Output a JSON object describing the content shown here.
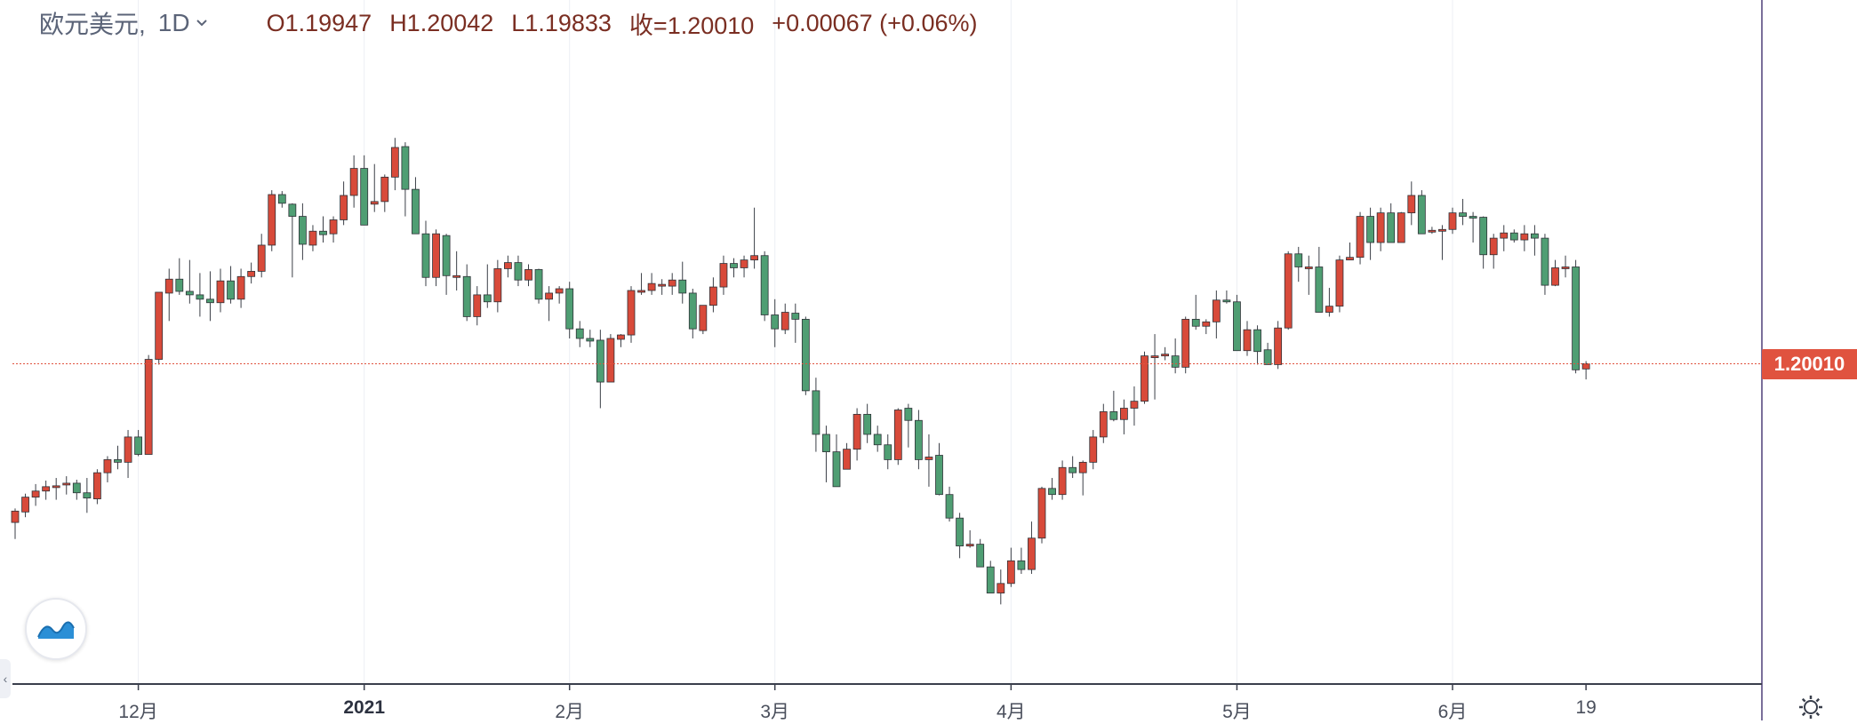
{
  "header": {
    "symbol": "欧元美元,",
    "timeframe": "1D",
    "open": "O1.19947",
    "high": "H1.20042",
    "low": "L1.19833",
    "close": "收=1.20010",
    "change": "+0.00067 (+0.06%)"
  },
  "price_badge": "1.20010",
  "colors": {
    "up": "#d84a3a",
    "down": "#4f9e73",
    "price_line": "#e0533f",
    "axis": "#3a3f4c",
    "grid": "#eceff4"
  },
  "icons": {
    "logo": "wave-logo-icon",
    "settings": "gear-icon",
    "scroll_left": "chevron-left-icon",
    "dropdown": "chevron-down-icon"
  },
  "chart_data": {
    "type": "candlestick",
    "symbol": "欧元美元",
    "interval": "1D",
    "last_price": 1.2001,
    "x_ticks": [
      {
        "label": "12月",
        "index": 12,
        "bold": false
      },
      {
        "label": "2021",
        "index": 34,
        "bold": true
      },
      {
        "label": "2月",
        "index": 54,
        "bold": false
      },
      {
        "label": "3月",
        "index": 74,
        "bold": false
      },
      {
        "label": "4月",
        "index": 97,
        "bold": false
      },
      {
        "label": "5月",
        "index": 119,
        "bold": false
      },
      {
        "label": "6月",
        "index": 140,
        "bold": false
      },
      {
        "label": "19",
        "index": 153,
        "bold": false
      }
    ],
    "ylim": [
      1.1705,
      1.2357
    ],
    "grid": true,
    "candles": [
      [
        1.1819,
        1.1835,
        1.18,
        1.1832
      ],
      [
        1.1831,
        1.1852,
        1.1825,
        1.1848
      ],
      [
        1.1848,
        1.1863,
        1.1838,
        1.1855
      ],
      [
        1.1855,
        1.1867,
        1.1845,
        1.186
      ],
      [
        1.1861,
        1.187,
        1.1845,
        1.1861
      ],
      [
        1.1862,
        1.1872,
        1.1851,
        1.1864
      ],
      [
        1.1864,
        1.1868,
        1.1845,
        1.1853
      ],
      [
        1.1853,
        1.187,
        1.183,
        1.1847
      ],
      [
        1.1846,
        1.188,
        1.184,
        1.1876
      ],
      [
        1.1876,
        1.1895,
        1.1865,
        1.1891
      ],
      [
        1.1891,
        1.1907,
        1.188,
        1.1888
      ],
      [
        1.1888,
        1.1925,
        1.187,
        1.1917
      ],
      [
        1.1917,
        1.1925,
        1.1895,
        1.1897
      ],
      [
        1.1897,
        1.2011,
        1.1897,
        1.2006
      ],
      [
        1.2006,
        1.208,
        1.2,
        1.2083
      ],
      [
        1.2082,
        1.211,
        1.205,
        1.2098
      ],
      [
        1.2098,
        1.2122,
        1.208,
        1.2084
      ],
      [
        1.2084,
        1.212,
        1.207,
        1.208
      ],
      [
        1.208,
        1.2105,
        1.2055,
        1.2075
      ],
      [
        1.2075,
        1.2107,
        1.205,
        1.2071
      ],
      [
        1.2071,
        1.211,
        1.206,
        1.2096
      ],
      [
        1.2096,
        1.2113,
        1.207,
        1.2075
      ],
      [
        1.2075,
        1.211,
        1.2065,
        1.2101
      ],
      [
        1.2101,
        1.2117,
        1.2093,
        1.2107
      ],
      [
        1.2107,
        1.215,
        1.21,
        1.2137
      ],
      [
        1.2137,
        1.22,
        1.213,
        1.2195
      ],
      [
        1.2195,
        1.2199,
        1.218,
        1.2185
      ],
      [
        1.2184,
        1.2185,
        1.21,
        1.217
      ],
      [
        1.217,
        1.2185,
        1.212,
        1.2138
      ],
      [
        1.2137,
        1.216,
        1.213,
        1.2153
      ],
      [
        1.2153,
        1.217,
        1.214,
        1.2149
      ],
      [
        1.215,
        1.217,
        1.214,
        1.2166
      ],
      [
        1.2166,
        1.221,
        1.216,
        1.2194
      ],
      [
        1.2194,
        1.224,
        1.218,
        1.2225
      ],
      [
        1.2225,
        1.224,
        1.216,
        1.216
      ],
      [
        1.2184,
        1.223,
        1.2175,
        1.2187
      ],
      [
        1.2187,
        1.2218,
        1.2175,
        1.2215
      ],
      [
        1.2215,
        1.226,
        1.22,
        1.2249
      ],
      [
        1.225,
        1.2255,
        1.217,
        1.2201
      ],
      [
        1.2201,
        1.2215,
        1.215,
        1.215
      ],
      [
        1.215,
        1.2165,
        1.209,
        1.21
      ],
      [
        1.21,
        1.2155,
        1.209,
        1.215
      ],
      [
        1.2148,
        1.215,
        1.208,
        1.2102
      ],
      [
        1.2102,
        1.213,
        1.2085,
        1.2102
      ],
      [
        1.2101,
        1.2115,
        1.205,
        1.2055
      ],
      [
        1.2055,
        1.209,
        1.2045,
        1.208
      ],
      [
        1.208,
        1.2115,
        1.2065,
        1.2072
      ],
      [
        1.2072,
        1.212,
        1.206,
        1.211
      ],
      [
        1.211,
        1.2125,
        1.21,
        1.2117
      ],
      [
        1.2117,
        1.2125,
        1.209,
        1.2097
      ],
      [
        1.2097,
        1.2115,
        1.209,
        1.2109
      ],
      [
        1.2109,
        1.211,
        1.207,
        1.2075
      ],
      [
        1.2075,
        1.209,
        1.205,
        1.2082
      ],
      [
        1.2082,
        1.209,
        1.207,
        1.2087
      ],
      [
        1.2087,
        1.2095,
        1.203,
        1.2041
      ],
      [
        1.2041,
        1.205,
        1.202,
        1.203
      ],
      [
        1.203,
        1.204,
        1.202,
        1.2027
      ],
      [
        1.2028,
        1.204,
        1.195,
        1.198
      ],
      [
        1.198,
        1.2035,
        1.198,
        1.203
      ],
      [
        1.2029,
        1.2035,
        1.202,
        1.2034
      ],
      [
        1.2034,
        1.209,
        1.2025,
        1.2085
      ],
      [
        1.2085,
        1.2105,
        1.208,
        1.2085
      ],
      [
        1.2085,
        1.2105,
        1.208,
        1.2093
      ],
      [
        1.2092,
        1.2098,
        1.208,
        1.2092
      ],
      [
        1.209,
        1.2105,
        1.208,
        1.2097
      ],
      [
        1.2097,
        1.2118,
        1.207,
        1.2082
      ],
      [
        1.2082,
        1.2087,
        1.203,
        1.2041
      ],
      [
        1.2039,
        1.2068,
        1.2035,
        1.2068
      ],
      [
        1.2068,
        1.21,
        1.206,
        1.2089
      ],
      [
        1.2089,
        1.2125,
        1.208,
        1.2116
      ],
      [
        1.2116,
        1.2122,
        1.21,
        1.2111
      ],
      [
        1.2111,
        1.2125,
        1.21,
        1.212
      ],
      [
        1.212,
        1.218,
        1.211,
        1.2125
      ],
      [
        1.2125,
        1.213,
        1.205,
        1.2057
      ],
      [
        1.2057,
        1.2075,
        1.202,
        1.2041
      ],
      [
        1.204,
        1.207,
        1.2035,
        1.206
      ],
      [
        1.2059,
        1.207,
        1.2025,
        1.2052
      ],
      [
        1.2052,
        1.2055,
        1.1965,
        1.197
      ],
      [
        1.197,
        1.1985,
        1.19,
        1.192
      ],
      [
        1.192,
        1.193,
        1.1865,
        1.19
      ],
      [
        1.19,
        1.192,
        1.1862,
        1.186
      ],
      [
        1.188,
        1.191,
        1.188,
        1.1903
      ],
      [
        1.1903,
        1.195,
        1.189,
        1.1943
      ],
      [
        1.1943,
        1.1955,
        1.191,
        1.192
      ],
      [
        1.192,
        1.193,
        1.19,
        1.1908
      ],
      [
        1.1908,
        1.192,
        1.188,
        1.1891
      ],
      [
        1.1891,
        1.195,
        1.1885,
        1.1948
      ],
      [
        1.195,
        1.1955,
        1.1905,
        1.1936
      ],
      [
        1.1936,
        1.1948,
        1.188,
        1.1891
      ],
      [
        1.1891,
        1.192,
        1.186,
        1.1894
      ],
      [
        1.1896,
        1.191,
        1.185,
        1.1851
      ],
      [
        1.1851,
        1.186,
        1.182,
        1.1824
      ],
      [
        1.1824,
        1.183,
        1.1778,
        1.1792
      ],
      [
        1.1792,
        1.181,
        1.179,
        1.1794
      ],
      [
        1.1794,
        1.18,
        1.1773,
        1.1768
      ],
      [
        1.1768,
        1.1775,
        1.174,
        1.1738
      ],
      [
        1.1738,
        1.1765,
        1.1725,
        1.1749
      ],
      [
        1.1749,
        1.179,
        1.1745,
        1.1775
      ],
      [
        1.1775,
        1.179,
        1.176,
        1.1765
      ],
      [
        1.1765,
        1.182,
        1.176,
        1.1801
      ],
      [
        1.1801,
        1.186,
        1.1795,
        1.1858
      ],
      [
        1.1858,
        1.187,
        1.1845,
        1.1851
      ],
      [
        1.1851,
        1.189,
        1.1845,
        1.1882
      ],
      [
        1.1882,
        1.1895,
        1.187,
        1.1876
      ],
      [
        1.1876,
        1.189,
        1.185,
        1.1888
      ],
      [
        1.1888,
        1.1925,
        1.188,
        1.1917
      ],
      [
        1.1917,
        1.1955,
        1.191,
        1.1946
      ],
      [
        1.1946,
        1.197,
        1.1935,
        1.1937
      ],
      [
        1.1937,
        1.196,
        1.192,
        1.195
      ],
      [
        1.195,
        1.1975,
        1.193,
        1.1958
      ],
      [
        1.1958,
        1.2015,
        1.1955,
        1.201
      ],
      [
        1.201,
        1.2035,
        1.196,
        1.201
      ],
      [
        1.201,
        1.202,
        1.2005,
        1.2012
      ],
      [
        1.201,
        1.203,
        1.199,
        1.1997
      ],
      [
        1.1997,
        1.2055,
        1.199,
        1.2052
      ],
      [
        1.2052,
        1.208,
        1.204,
        1.2044
      ],
      [
        1.2044,
        1.2052,
        1.2035,
        1.2049
      ],
      [
        1.2049,
        1.2085,
        1.203,
        1.2074
      ],
      [
        1.2074,
        1.2085,
        1.207,
        1.2072
      ],
      [
        1.2072,
        1.208,
        1.202,
        1.2016
      ],
      [
        1.2016,
        1.205,
        1.201,
        1.204
      ],
      [
        1.204,
        1.2045,
        1.2,
        1.2015
      ],
      [
        1.2017,
        1.2025,
        1.2,
        1.2
      ],
      [
        1.2,
        1.205,
        1.1995,
        1.2042
      ],
      [
        1.2042,
        1.213,
        1.204,
        1.2127
      ],
      [
        1.2127,
        1.2135,
        1.2095,
        1.2112
      ],
      [
        1.2112,
        1.2125,
        1.208,
        1.2112
      ],
      [
        1.2112,
        1.2135,
        1.206,
        1.206
      ],
      [
        1.206,
        1.2088,
        1.2055,
        1.2067
      ],
      [
        1.2067,
        1.2125,
        1.206,
        1.212
      ],
      [
        1.212,
        1.214,
        1.212,
        1.2123
      ],
      [
        1.2123,
        1.2175,
        1.2115,
        1.217
      ],
      [
        1.217,
        1.218,
        1.212,
        1.214
      ],
      [
        1.214,
        1.218,
        1.213,
        1.2174
      ],
      [
        1.2174,
        1.2185,
        1.214,
        1.214
      ],
      [
        1.214,
        1.2175,
        1.214,
        1.2174
      ],
      [
        1.2174,
        1.221,
        1.216,
        1.2194
      ],
      [
        1.2194,
        1.22,
        1.215,
        1.215
      ],
      [
        1.2152,
        1.2158,
        1.215,
        1.2154
      ],
      [
        1.2154,
        1.216,
        1.212,
        1.2155
      ],
      [
        1.2155,
        1.218,
        1.215,
        1.2174
      ],
      [
        1.2174,
        1.219,
        1.216,
        1.217
      ],
      [
        1.217,
        1.2175,
        1.214,
        1.2169
      ],
      [
        1.2169,
        1.217,
        1.211,
        1.2126
      ],
      [
        1.2126,
        1.215,
        1.211,
        1.2145
      ],
      [
        1.2145,
        1.216,
        1.213,
        1.2151
      ],
      [
        1.2151,
        1.2155,
        1.214,
        1.2143
      ],
      [
        1.2143,
        1.216,
        1.213,
        1.215
      ],
      [
        1.215,
        1.216,
        1.2125,
        1.2145
      ],
      [
        1.2145,
        1.215,
        1.208,
        1.2091
      ],
      [
        1.2091,
        1.212,
        1.209,
        1.2111
      ],
      [
        1.2111,
        1.2125,
        1.21,
        1.2112
      ],
      [
        1.2112,
        1.212,
        1.199,
        1.1994
      ],
      [
        1.1995,
        1.2004,
        1.1983,
        1.2001
      ]
    ]
  }
}
